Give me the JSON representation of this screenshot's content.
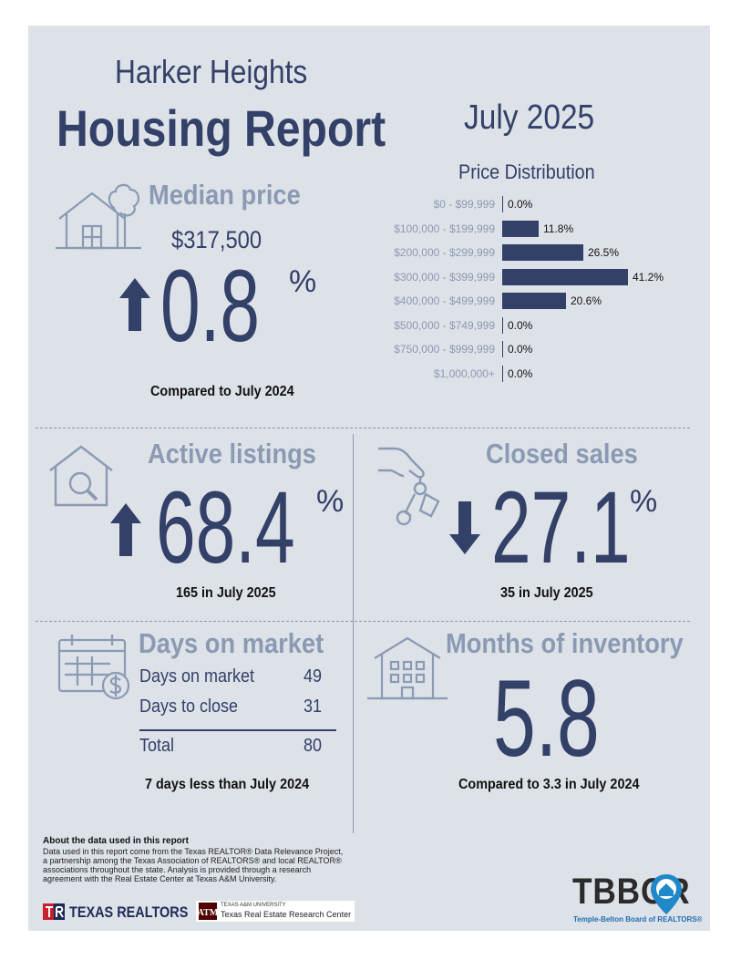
{
  "header": {
    "city": "Harker Heights",
    "report_title": "Housing Report",
    "month": "July 2025"
  },
  "median": {
    "title": "Median price",
    "price": "$317,500",
    "change": "0.8",
    "pct_sign": "%",
    "direction": "up",
    "caption": "Compared to July 2024"
  },
  "price_distribution": {
    "title": "Price Distribution"
  },
  "chart_data": {
    "type": "bar",
    "orientation": "horizontal",
    "title": "Price Distribution",
    "categories": [
      "$0 - $99,999",
      "$100,000 - $199,999",
      "$200,000 - $299,999",
      "$300,000 - $399,999",
      "$400,000 - $499,999",
      "$500,000 - $749,999",
      "$750,000 - $999,999",
      "$1,000,000+"
    ],
    "values": [
      0.0,
      11.8,
      26.5,
      41.2,
      20.6,
      0.0,
      0.0,
      0.0
    ],
    "value_labels": [
      "0.0%",
      "11.8%",
      "26.5%",
      "41.2%",
      "20.6%",
      "0.0%",
      "0.0%",
      "0.0%"
    ]
  },
  "active": {
    "title": "Active listings",
    "change": "68.4",
    "pct_sign": "%",
    "direction": "up",
    "caption": "165 in July 2025"
  },
  "closed": {
    "title": "Closed sales",
    "change": "27.1",
    "pct_sign": "%",
    "direction": "down",
    "caption": "35 in July 2025"
  },
  "dom": {
    "title": "Days on market",
    "rows": [
      {
        "label": "Days on market",
        "value": "49"
      },
      {
        "label": "Days to close",
        "value": "31"
      }
    ],
    "total_label": "Total",
    "total_value": "80",
    "caption": "7 days less than July 2024"
  },
  "inventory": {
    "title": "Months of inventory",
    "value": "5.8",
    "caption": "Compared to 3.3 in July 2024"
  },
  "footer": {
    "about_title": "About the data used in this report",
    "about_text": "Data used in this report come from the Texas REALTOR® Data Relevance Project, a partnership among the Texas Association of REALTORS® and local REALTOR® associations throughout the state. Analysis is provided through a research agreement with the Real Estate Center at Texas A&M University.",
    "texas_realtors": "TEXAS REALTORS",
    "tamu_small": "TEXAS A&M UNIVERSITY",
    "tamu_center": "Texas Real Estate Research Center",
    "tbbor_logo": "TBBOR",
    "tbbor_sub": "Temple-Belton Board of REALTORS®"
  },
  "colors": {
    "navy": "#334068",
    "slate": "#8b9ab3",
    "panel": "#dde1e8"
  }
}
